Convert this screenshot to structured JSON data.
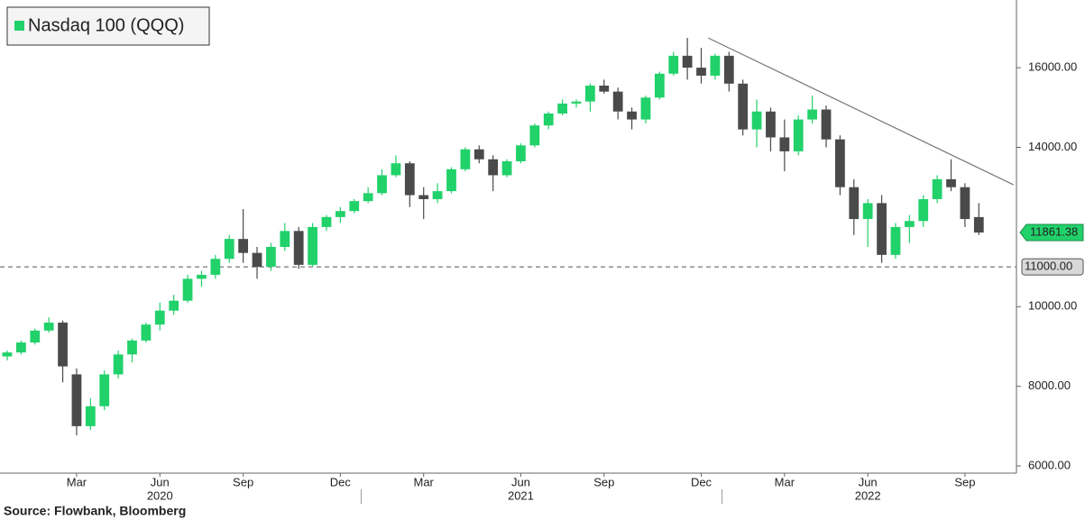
{
  "chart_data": {
    "type": "candlestick",
    "series": [
      {
        "name": "Nasdaq 100 (QQQ)",
        "up_color": "#21d16a",
        "down_color": "#4a4a4a",
        "open": [
          8750,
          8850,
          9100,
          9400,
          9600,
          8300,
          7000,
          7500,
          8300,
          8800,
          9150,
          9550,
          9900,
          10150,
          10700,
          10800,
          11200,
          11700,
          11350,
          11000,
          11500,
          11900,
          11050,
          12000,
          12250,
          12400,
          12650,
          12850,
          13300,
          13600,
          12800,
          12700,
          12900,
          13450,
          13950,
          13700,
          13300,
          13650,
          14050,
          14550,
          14850,
          15100,
          15150,
          15550,
          15400,
          14900,
          14700,
          15250,
          15850,
          16300,
          16000,
          15800,
          16300,
          15600,
          14450,
          14900,
          14250,
          13900,
          14700,
          14950,
          14200,
          13000,
          12200,
          12600,
          11300,
          12000,
          12150,
          12700,
          13200,
          13000,
          12250
        ],
        "high": [
          8900,
          9150,
          9450,
          9730,
          9650,
          8450,
          7700,
          8400,
          8900,
          9200,
          9600,
          10100,
          10300,
          10800,
          10900,
          11300,
          11800,
          12450,
          11500,
          11600,
          12100,
          12000,
          12100,
          12300,
          12500,
          12700,
          13000,
          13450,
          13800,
          13650,
          13000,
          13100,
          13500,
          14000,
          14050,
          13800,
          13700,
          14100,
          14600,
          14900,
          15200,
          15200,
          15600,
          15700,
          15500,
          15000,
          15300,
          15900,
          16400,
          16750,
          16500,
          16350,
          16400,
          15700,
          15200,
          15000,
          14700,
          14800,
          15300,
          15050,
          14300,
          13200,
          12700,
          12800,
          12100,
          12300,
          12800,
          13300,
          13700,
          13100,
          12600
        ],
        "low": [
          8650,
          8800,
          9050,
          9350,
          8100,
          6770,
          6900,
          7400,
          8200,
          8600,
          9100,
          9400,
          9800,
          10100,
          10500,
          10700,
          11100,
          11100,
          10700,
          10900,
          11400,
          10950,
          11000,
          11900,
          12100,
          12350,
          12600,
          12800,
          13250,
          12500,
          12200,
          12600,
          12850,
          13400,
          13600,
          12900,
          13250,
          13600,
          14000,
          14450,
          14800,
          15000,
          14900,
          15350,
          14700,
          14450,
          14600,
          15200,
          15800,
          15700,
          15600,
          15700,
          15400,
          14300,
          14000,
          13900,
          13400,
          13800,
          14600,
          14000,
          12800,
          11800,
          11500,
          11100,
          11200,
          11600,
          12000,
          12600,
          12900,
          12000,
          11800
        ],
        "close": [
          8850,
          9100,
          9400,
          9600,
          8500,
          7000,
          7500,
          8300,
          8800,
          9150,
          9550,
          9900,
          10150,
          10700,
          10800,
          11200,
          11700,
          11350,
          11000,
          11500,
          11900,
          11050,
          12000,
          12250,
          12400,
          12650,
          12850,
          13300,
          13600,
          12800,
          12700,
          12900,
          13450,
          13950,
          13700,
          13300,
          13650,
          14050,
          14550,
          14850,
          15100,
          15150,
          15550,
          15400,
          14900,
          14700,
          15250,
          15850,
          16300,
          16000,
          15800,
          16300,
          15600,
          14450,
          14900,
          14250,
          13900,
          14700,
          14950,
          14200,
          13000,
          12200,
          12600,
          11300,
          12000,
          12150,
          12700,
          13200,
          13000,
          12200,
          11861.38
        ]
      }
    ],
    "categories": [
      null,
      null,
      null,
      null,
      null,
      "Mar",
      null,
      null,
      null,
      null,
      null,
      "Jun",
      null,
      null,
      null,
      null,
      null,
      "Sep",
      null,
      null,
      null,
      null,
      null,
      null,
      "Dec",
      null,
      null,
      null,
      null,
      null,
      "Mar",
      null,
      null,
      null,
      null,
      null,
      null,
      "Jun",
      null,
      null,
      null,
      null,
      null,
      "Sep",
      null,
      null,
      null,
      null,
      null,
      null,
      "Dec",
      null,
      null,
      null,
      null,
      null,
      "Mar",
      null,
      null,
      null,
      null,
      null,
      "Jun",
      null,
      null,
      null,
      null,
      null,
      null,
      "Sep",
      null
    ],
    "years": [
      "2020",
      "2021",
      "2022"
    ],
    "ylim": [
      5820,
      17700
    ],
    "yticks": [
      {
        "value": 6000,
        "label": "6000.00"
      },
      {
        "value": 8000,
        "label": "8000.00"
      },
      {
        "value": 10000,
        "label": "10000.00"
      },
      {
        "value": 14000,
        "label": "14000.00"
      },
      {
        "value": 16000,
        "label": "16000.00"
      }
    ],
    "trendline": {
      "x": [
        50.5,
        72.5
      ],
      "y": [
        16747,
        13059
      ]
    },
    "support_line": {
      "value": 11000,
      "label": "11000.00"
    },
    "last_price": {
      "value": 11861.38,
      "label": "11861.38"
    },
    "source": "Source: Flowbank, Bloomberg"
  }
}
